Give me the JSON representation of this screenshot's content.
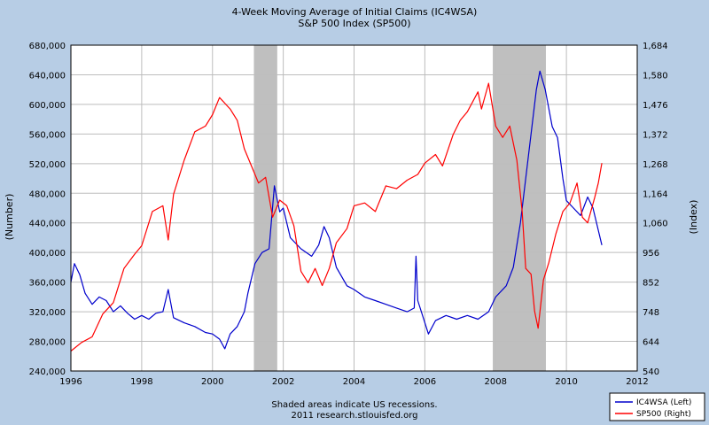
{
  "chart_data": {
    "type": "line",
    "title_lines": [
      "4-Week Moving Average of Initial Claims (IC4WSA)",
      "S&P 500 Index (SP500)"
    ],
    "left_axis": {
      "label": "(Number)",
      "ticks": [
        240000,
        280000,
        320000,
        360000,
        400000,
        440000,
        480000,
        520000,
        560000,
        600000,
        640000,
        680000
      ],
      "tick_labels": [
        "240,000",
        "280,000",
        "320,000",
        "360,000",
        "400,000",
        "440,000",
        "480,000",
        "520,000",
        "560,000",
        "600,000",
        "640,000",
        "680,000"
      ],
      "ylim": [
        240000,
        680000
      ]
    },
    "right_axis": {
      "label": "(Index)",
      "ticks": [
        540,
        644,
        748,
        852,
        956,
        1060,
        1164,
        1268,
        1372,
        1476,
        1580,
        1684
      ],
      "tick_labels": [
        "540",
        "644",
        "748",
        "852",
        "956",
        "1,060",
        "1,164",
        "1,268",
        "1,372",
        "1,476",
        "1,580",
        "1,684"
      ],
      "ylim": [
        540,
        1684
      ]
    },
    "x_axis": {
      "ticks": [
        1996,
        1998,
        2000,
        2002,
        2004,
        2006,
        2008,
        2010,
        2012
      ],
      "tick_labels": [
        "1996",
        "1998",
        "2000",
        "2002",
        "2004",
        "2006",
        "2008",
        "2010",
        "2012"
      ],
      "xlim": [
        1996,
        2012
      ]
    },
    "grid": true,
    "recessions": [
      [
        2001.17,
        2001.83
      ],
      [
        2007.92,
        2009.42
      ]
    ],
    "footer": [
      "Shaded areas indicate US recessions.",
      "2011 research.stlouisfed.org"
    ],
    "legend": {
      "placement": "bottom-right",
      "entries": [
        "IC4WSA (Left)",
        "SP500 (Right)"
      ]
    },
    "series": [
      {
        "name": "IC4WSA (Left)",
        "axis": "left",
        "color": "#0000cc",
        "points": [
          [
            1996.0,
            360000
          ],
          [
            1996.1,
            385000
          ],
          [
            1996.25,
            370000
          ],
          [
            1996.4,
            345000
          ],
          [
            1996.6,
            330000
          ],
          [
            1996.8,
            340000
          ],
          [
            1997.0,
            335000
          ],
          [
            1997.2,
            320000
          ],
          [
            1997.4,
            328000
          ],
          [
            1997.6,
            318000
          ],
          [
            1997.8,
            310000
          ],
          [
            1998.0,
            315000
          ],
          [
            1998.2,
            310000
          ],
          [
            1998.4,
            318000
          ],
          [
            1998.6,
            320000
          ],
          [
            1998.75,
            350000
          ],
          [
            1998.9,
            312000
          ],
          [
            1999.2,
            305000
          ],
          [
            1999.5,
            300000
          ],
          [
            1999.8,
            292000
          ],
          [
            2000.0,
            290000
          ],
          [
            2000.2,
            283000
          ],
          [
            2000.35,
            270000
          ],
          [
            2000.5,
            290000
          ],
          [
            2000.7,
            300000
          ],
          [
            2000.9,
            320000
          ],
          [
            2001.0,
            345000
          ],
          [
            2001.2,
            385000
          ],
          [
            2001.4,
            400000
          ],
          [
            2001.6,
            405000
          ],
          [
            2001.75,
            490000
          ],
          [
            2001.9,
            455000
          ],
          [
            2002.0,
            460000
          ],
          [
            2002.2,
            420000
          ],
          [
            2002.5,
            405000
          ],
          [
            2002.8,
            395000
          ],
          [
            2003.0,
            410000
          ],
          [
            2003.15,
            435000
          ],
          [
            2003.3,
            420000
          ],
          [
            2003.5,
            380000
          ],
          [
            2003.8,
            355000
          ],
          [
            2004.0,
            350000
          ],
          [
            2004.3,
            340000
          ],
          [
            2004.6,
            335000
          ],
          [
            2004.9,
            330000
          ],
          [
            2005.2,
            325000
          ],
          [
            2005.5,
            320000
          ],
          [
            2005.7,
            325000
          ],
          [
            2005.75,
            395000
          ],
          [
            2005.8,
            335000
          ],
          [
            2006.0,
            305000
          ],
          [
            2006.1,
            290000
          ],
          [
            2006.3,
            308000
          ],
          [
            2006.6,
            315000
          ],
          [
            2006.9,
            310000
          ],
          [
            2007.2,
            315000
          ],
          [
            2007.5,
            310000
          ],
          [
            2007.8,
            320000
          ],
          [
            2008.0,
            340000
          ],
          [
            2008.3,
            355000
          ],
          [
            2008.5,
            380000
          ],
          [
            2008.7,
            440000
          ],
          [
            2008.9,
            520000
          ],
          [
            2009.0,
            560000
          ],
          [
            2009.15,
            620000
          ],
          [
            2009.25,
            645000
          ],
          [
            2009.4,
            620000
          ],
          [
            2009.6,
            570000
          ],
          [
            2009.75,
            555000
          ],
          [
            2009.9,
            500000
          ],
          [
            2010.0,
            470000
          ],
          [
            2010.2,
            460000
          ],
          [
            2010.4,
            450000
          ],
          [
            2010.6,
            475000
          ],
          [
            2010.75,
            460000
          ],
          [
            2010.9,
            430000
          ],
          [
            2011.0,
            410000
          ]
        ]
      },
      {
        "name": "SP500 (Right)",
        "axis": "right",
        "color": "#ff0000",
        "points": [
          [
            1996.0,
            610
          ],
          [
            1996.3,
            640
          ],
          [
            1996.6,
            660
          ],
          [
            1996.9,
            740
          ],
          [
            1997.2,
            780
          ],
          [
            1997.5,
            900
          ],
          [
            1997.8,
            950
          ],
          [
            1998.0,
            980
          ],
          [
            1998.3,
            1100
          ],
          [
            1998.6,
            1120
          ],
          [
            1998.75,
            1000
          ],
          [
            1998.9,
            1160
          ],
          [
            1999.2,
            1280
          ],
          [
            1999.5,
            1380
          ],
          [
            1999.8,
            1400
          ],
          [
            2000.0,
            1440
          ],
          [
            2000.2,
            1500
          ],
          [
            2000.5,
            1460
          ],
          [
            2000.7,
            1420
          ],
          [
            2000.9,
            1320
          ],
          [
            2001.1,
            1260
          ],
          [
            2001.3,
            1200
          ],
          [
            2001.5,
            1220
          ],
          [
            2001.7,
            1080
          ],
          [
            2001.9,
            1140
          ],
          [
            2002.1,
            1120
          ],
          [
            2002.3,
            1050
          ],
          [
            2002.5,
            890
          ],
          [
            2002.7,
            850
          ],
          [
            2002.9,
            900
          ],
          [
            2003.1,
            840
          ],
          [
            2003.3,
            900
          ],
          [
            2003.5,
            990
          ],
          [
            2003.8,
            1040
          ],
          [
            2004.0,
            1120
          ],
          [
            2004.3,
            1130
          ],
          [
            2004.6,
            1100
          ],
          [
            2004.9,
            1190
          ],
          [
            2005.2,
            1180
          ],
          [
            2005.5,
            1210
          ],
          [
            2005.8,
            1230
          ],
          [
            2006.0,
            1270
          ],
          [
            2006.3,
            1300
          ],
          [
            2006.5,
            1260
          ],
          [
            2006.8,
            1370
          ],
          [
            2007.0,
            1420
          ],
          [
            2007.2,
            1450
          ],
          [
            2007.5,
            1520
          ],
          [
            2007.6,
            1460
          ],
          [
            2007.8,
            1550
          ],
          [
            2008.0,
            1400
          ],
          [
            2008.2,
            1360
          ],
          [
            2008.4,
            1400
          ],
          [
            2008.6,
            1280
          ],
          [
            2008.75,
            1100
          ],
          [
            2008.85,
            900
          ],
          [
            2009.0,
            880
          ],
          [
            2009.1,
            750
          ],
          [
            2009.2,
            690
          ],
          [
            2009.35,
            860
          ],
          [
            2009.5,
            920
          ],
          [
            2009.7,
            1020
          ],
          [
            2009.9,
            1100
          ],
          [
            2010.1,
            1130
          ],
          [
            2010.3,
            1200
          ],
          [
            2010.45,
            1080
          ],
          [
            2010.6,
            1060
          ],
          [
            2010.8,
            1150
          ],
          [
            2010.9,
            1200
          ],
          [
            2011.0,
            1270
          ]
        ]
      }
    ]
  }
}
